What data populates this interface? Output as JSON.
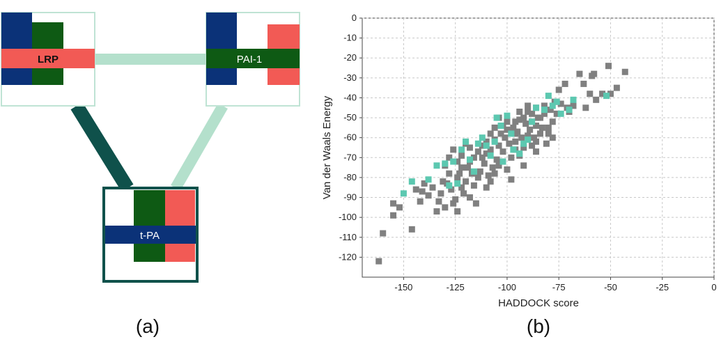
{
  "network": {
    "nodes": [
      {
        "id": "lrp",
        "label": "LRP"
      },
      {
        "id": "pai1",
        "label": "PAI-1"
      },
      {
        "id": "tpa",
        "label": "t-PA"
      }
    ],
    "edges": [
      {
        "from": "lrp",
        "to": "pai1",
        "strength": "weak"
      },
      {
        "from": "lrp",
        "to": "tpa",
        "strength": "strong"
      },
      {
        "from": "pai1",
        "to": "tpa",
        "strength": "weak"
      }
    ],
    "colors": {
      "blue": "#0b3278",
      "green": "#0e5a14",
      "red": "#f25a55",
      "strong_edge": "#0f514b",
      "weak_edge": "#b4e0cc",
      "box_border": "#bfe3d4",
      "selected_border": "#0f514b"
    }
  },
  "panels": {
    "a": "(a)",
    "b": "(b)"
  },
  "chart_data": {
    "type": "scatter",
    "title": "",
    "xlabel": "HADDOCK score",
    "ylabel": "Van der Waals Energy",
    "xlim": [
      -170,
      0
    ],
    "ylim": [
      -130,
      0
    ],
    "xticks": [
      "-150",
      "-125",
      "-100",
      "-75",
      "-50",
      "-25",
      "0"
    ],
    "yticks": [
      "0",
      "-10",
      "-20",
      "-30",
      "-40",
      "-50",
      "-60",
      "-70",
      "-80",
      "-90",
      "-100",
      "-110",
      "-120"
    ],
    "grid": true,
    "series": [
      {
        "color": "#808080",
        "points": [
          [
            -162,
            -122
          ],
          [
            -160,
            -108
          ],
          [
            -155,
            -99
          ],
          [
            -155,
            -93
          ],
          [
            -152,
            -95
          ],
          [
            -146,
            -106
          ],
          [
            -142,
            -92
          ],
          [
            -141,
            -87
          ],
          [
            -138,
            -89
          ],
          [
            -136,
            -85
          ],
          [
            -134,
            -97
          ],
          [
            -133,
            -92
          ],
          [
            -132,
            -88
          ],
          [
            -130,
            -95
          ],
          [
            -131,
            -82
          ],
          [
            -129,
            -83
          ],
          [
            -127,
            -86
          ],
          [
            -126,
            -93
          ],
          [
            -125,
            -91
          ],
          [
            -124,
            -80
          ],
          [
            -123,
            -78
          ],
          [
            -122,
            -85
          ],
          [
            -121,
            -88
          ],
          [
            -120,
            -82
          ],
          [
            -119,
            -75
          ],
          [
            -118,
            -72
          ],
          [
            -117,
            -78
          ],
          [
            -116,
            -84
          ],
          [
            -115,
            -93
          ],
          [
            -114,
            -80
          ],
          [
            -113,
            -77
          ],
          [
            -112,
            -70
          ],
          [
            -111,
            -73
          ],
          [
            -110,
            -68
          ],
          [
            -109,
            -79
          ],
          [
            -108,
            -66
          ],
          [
            -107,
            -75
          ],
          [
            -106,
            -61
          ],
          [
            -105,
            -71
          ],
          [
            -104,
            -64
          ],
          [
            -103,
            -58
          ],
          [
            -102,
            -67
          ],
          [
            -101,
            -60
          ],
          [
            -100,
            -56
          ],
          [
            -99,
            -63
          ],
          [
            -98,
            -70
          ],
          [
            -97,
            -55
          ],
          [
            -96,
            -62
          ],
          [
            -95,
            -57
          ],
          [
            -94,
            -51
          ],
          [
            -93,
            -60
          ],
          [
            -92,
            -65
          ],
          [
            -91,
            -53
          ],
          [
            -90,
            -47
          ],
          [
            -89,
            -56
          ],
          [
            -88,
            -52
          ],
          [
            -87,
            -60
          ],
          [
            -86,
            -45
          ],
          [
            -85,
            -50
          ],
          [
            -84,
            -58
          ],
          [
            -83,
            -55
          ],
          [
            -82,
            -48
          ],
          [
            -81,
            -63
          ],
          [
            -80,
            -55
          ],
          [
            -79,
            -46
          ],
          [
            -78,
            -52
          ],
          [
            -77,
            -42
          ],
          [
            -76,
            -48
          ],
          [
            -75,
            -36
          ],
          [
            -74,
            -43
          ],
          [
            -72,
            -33
          ],
          [
            -71,
            -45
          ],
          [
            -70,
            -47
          ],
          [
            -68,
            -44
          ],
          [
            -65,
            -28
          ],
          [
            -63,
            -33
          ],
          [
            -62,
            -45
          ],
          [
            -60,
            -38
          ],
          [
            -59,
            -29
          ],
          [
            -58,
            -28
          ],
          [
            -57,
            -41
          ],
          [
            -54,
            -38
          ],
          [
            -51,
            -24
          ],
          [
            -50,
            -38
          ],
          [
            -47,
            -35
          ],
          [
            -43,
            -27
          ],
          [
            -130,
            -74
          ],
          [
            -128,
            -70
          ],
          [
            -126,
            -66
          ],
          [
            -122,
            -69
          ],
          [
            -120,
            -63
          ],
          [
            -118,
            -65
          ],
          [
            -116,
            -70
          ],
          [
            -114,
            -67
          ],
          [
            -112,
            -64
          ],
          [
            -110,
            -62
          ],
          [
            -108,
            -58
          ],
          [
            -106,
            -55
          ],
          [
            -104,
            -50
          ],
          [
            -102,
            -54
          ],
          [
            -100,
            -52
          ],
          [
            -98,
            -57
          ],
          [
            -96,
            -52
          ],
          [
            -94,
            -47
          ],
          [
            -92,
            -50
          ],
          [
            -90,
            -44
          ],
          [
            -88,
            -48
          ],
          [
            -86,
            -54
          ],
          [
            -84,
            -50
          ],
          [
            -82,
            -44
          ],
          [
            -104,
            -74
          ],
          [
            -100,
            -76
          ],
          [
            -98,
            -81
          ],
          [
            -96,
            -66
          ],
          [
            -94,
            -69
          ],
          [
            -92,
            -74
          ],
          [
            -88,
            -64
          ],
          [
            -86,
            -67
          ],
          [
            -110,
            -85
          ],
          [
            -108,
            -82
          ],
          [
            -106,
            -78
          ],
          [
            -102,
            -72
          ],
          [
            -118,
            -90
          ],
          [
            -124,
            -97
          ],
          [
            -140,
            -83
          ],
          [
            -144,
            -86
          ],
          [
            -128,
            -78
          ],
          [
            -124,
            -72
          ],
          [
            -122,
            -75
          ],
          [
            -96,
            -58
          ],
          [
            -90,
            -59
          ],
          [
            -86,
            -62
          ],
          [
            -80,
            -58
          ],
          [
            -78,
            -60
          ]
        ]
      },
      {
        "color": "#5cc8b0",
        "points": [
          [
            -150,
            -88
          ],
          [
            -146,
            -82
          ],
          [
            -138,
            -81
          ],
          [
            -134,
            -74
          ],
          [
            -130,
            -73
          ],
          [
            -128,
            -84
          ],
          [
            -126,
            -72
          ],
          [
            -122,
            -66
          ],
          [
            -120,
            -62
          ],
          [
            -118,
            -71
          ],
          [
            -116,
            -77
          ],
          [
            -114,
            -63
          ],
          [
            -112,
            -60
          ],
          [
            -110,
            -64
          ],
          [
            -108,
            -69
          ],
          [
            -106,
            -62
          ],
          [
            -105,
            -50
          ],
          [
            -103,
            -54
          ],
          [
            -100,
            -49
          ],
          [
            -98,
            -58
          ],
          [
            -97,
            -66
          ],
          [
            -94,
            -68
          ],
          [
            -92,
            -63
          ],
          [
            -88,
            -52
          ],
          [
            -86,
            -45
          ],
          [
            -82,
            -46
          ],
          [
            -80,
            -39
          ],
          [
            -78,
            -44
          ],
          [
            -76,
            -42
          ],
          [
            -74,
            -48
          ],
          [
            -70,
            -46
          ],
          [
            -68,
            -41
          ],
          [
            -52,
            -39
          ],
          [
            -124,
            -83
          ],
          [
            -102,
            -72
          ],
          [
            -90,
            -61
          ]
        ]
      }
    ]
  }
}
